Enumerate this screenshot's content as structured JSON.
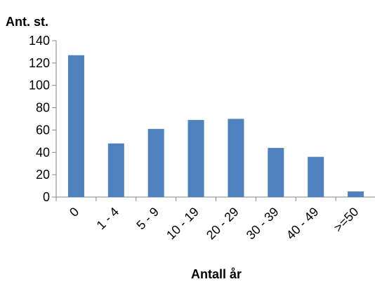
{
  "chart_data": {
    "type": "bar",
    "categories": [
      "0",
      "1 - 4",
      "5 - 9",
      "10 - 19",
      "20 - 29",
      "30 - 39",
      "40 - 49",
      ">=50"
    ],
    "values": [
      127,
      48,
      61,
      69,
      70,
      44,
      36,
      5
    ],
    "ylabel": "Ant. st.",
    "xlabel": "Antall år",
    "ylim": [
      0,
      140
    ],
    "yticks": [
      "0",
      "20",
      "40",
      "60",
      "80",
      "100",
      "120",
      "140"
    ],
    "grid": false,
    "legend": "none",
    "colors": {
      "bar": "#4f81bd",
      "axis": "#868686"
    }
  }
}
